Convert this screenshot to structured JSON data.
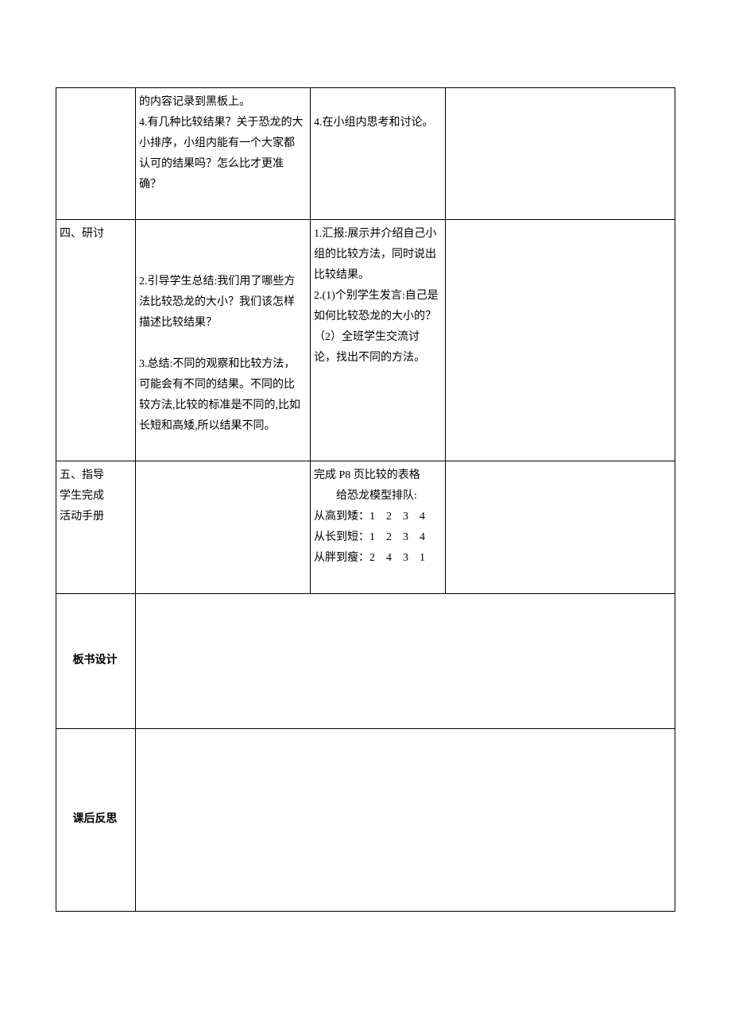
{
  "rows": {
    "r1": {
      "col1": "",
      "col2_l1": "的内容记录到黑板上。",
      "col2_l2": "4.有几种比较结果？关于恐龙的大小排序，小组内能有一个大家都认可的结果吗？怎么比才更准确？",
      "col3_l1": "",
      "col3_l2": "4.在小组内思考和讨论。",
      "col4": ""
    },
    "r2": {
      "col1": "四、研讨",
      "col2_p1": "2.引导学生总结:我们用了哪些方法比较恐龙的大小？我们该怎样描述比较结果？",
      "col2_p2": "3.总结:不同的观察和比较方法，可能会有不同的结果。不同的比较方法,比较的标准是不同的,比如长短和高矮,所以结果不同。",
      "col3_p1": "1.汇报:展示并介绍自己小组的比较方法，同时说出比较结果。",
      "col3_p2a": "2.(1)个别学生发言:自己是如何比较恐龙的大小的？",
      "col3_p2b": "（2）全班学生交流讨论，找出不同的方法。",
      "col4": ""
    },
    "r3": {
      "col1_l1": "五、指导",
      "col1_l2": "学生完成",
      "col1_l3": "活动手册",
      "col2": "",
      "col3_l1": "完成 P8 页比较的表格",
      "col3_l2_indent": "给恐龙模型排队:",
      "col3_l3": "从高到矮：1　2　3　4",
      "col3_l4": "从长到短：1　2　3　4",
      "col3_l5": "从胖到瘦：2　4　3　1",
      "col4": ""
    },
    "r4": {
      "col1": "板书设计",
      "rest": ""
    },
    "r5": {
      "col1": "课后反思",
      "rest": ""
    }
  }
}
